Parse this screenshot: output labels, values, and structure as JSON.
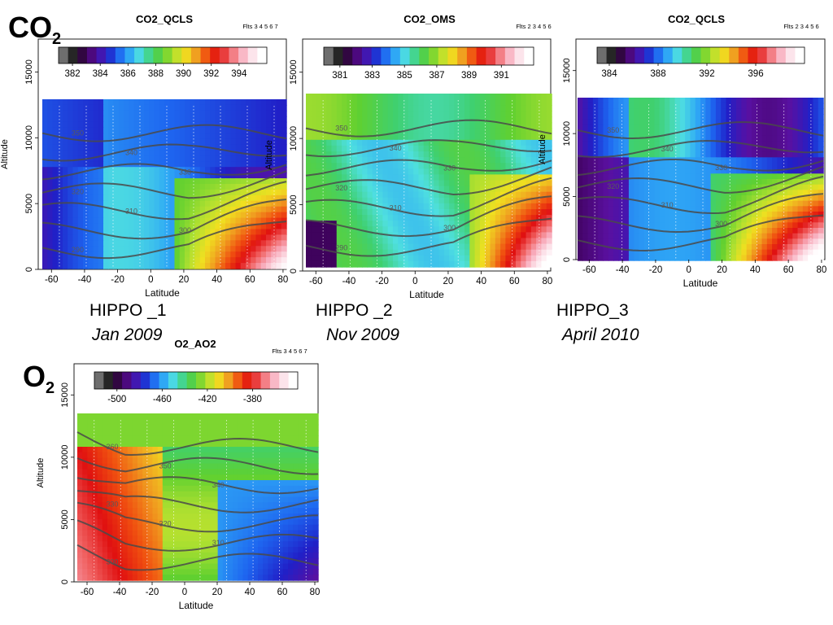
{
  "gas_labels": {
    "co2": {
      "main": "CO",
      "sub": "2"
    },
    "o2": {
      "main": "O",
      "sub": "2"
    }
  },
  "captions": [
    {
      "campaign": "HIPPO _1",
      "date": "Jan 2009"
    },
    {
      "campaign": "HIPPO _2",
      "date": "Nov 2009"
    },
    {
      "campaign": "HIPPO_3",
      "date": "April 2010"
    }
  ],
  "colorbar_colors": [
    "#6e6e6e",
    "#1a1a1a",
    "#3a0050",
    "#5a10a0",
    "#2020c8",
    "#1e66f0",
    "#2fa8f5",
    "#4fe0e0",
    "#3fd070",
    "#60d030",
    "#b0e030",
    "#f0e020",
    "#f0a020",
    "#f05010",
    "#e01010",
    "#f06060",
    "#f8a8b8",
    "#fce0e8",
    "#ffffff"
  ],
  "chart_data": [
    {
      "type": "heatmap",
      "title": "CO2_QCLS",
      "flights_label": "Flts 3  4  5  6  7",
      "xlabel": "Latitude",
      "ylabel": "Altitude",
      "xlim": [
        -68,
        82
      ],
      "ylim": [
        0,
        17500
      ],
      "x_ticks": [
        "-60",
        "-40",
        "-20",
        "0",
        "20",
        "40",
        "60",
        "80"
      ],
      "y_ticks": [
        "0",
        "5000",
        "10000",
        "15000"
      ],
      "colorbar": {
        "ticks": [
          "382",
          "384",
          "386",
          "388",
          "390",
          "392",
          "394"
        ],
        "range": [
          381,
          396
        ]
      },
      "contour_labels": [
        "350",
        "340",
        "330",
        "320",
        "310",
        "300",
        "290",
        "280",
        "270"
      ]
    },
    {
      "type": "heatmap",
      "title": "CO2_OMS",
      "flights_label": "Flts 2  3  4  5  6",
      "xlabel": "Latitude",
      "ylabel": "Altitude",
      "xlim": [
        -68,
        82
      ],
      "ylim": [
        0,
        17500
      ],
      "x_ticks": [
        "-60",
        "-40",
        "-20",
        "0",
        "20",
        "40",
        "60",
        "80"
      ],
      "y_ticks": [
        "0",
        "5000",
        "10000",
        "15000"
      ],
      "colorbar": {
        "ticks": [
          "381",
          "383",
          "385",
          "387",
          "389",
          "391"
        ],
        "range": [
          380,
          393
        ]
      },
      "contour_labels": [
        "350",
        "340",
        "330",
        "320",
        "310",
        "300",
        "290",
        "280",
        "360"
      ]
    },
    {
      "type": "heatmap",
      "title": "CO2_QCLS",
      "flights_label": "Flts 2  3  4  5  6",
      "xlabel": "Latitude",
      "ylabel": "Altitude",
      "xlim": [
        -68,
        82
      ],
      "ylim": [
        0,
        17500
      ],
      "x_ticks": [
        "-60",
        "-40",
        "-20",
        "0",
        "20",
        "40",
        "60",
        "80"
      ],
      "y_ticks": [
        "0",
        "5000",
        "10000",
        "15000"
      ],
      "colorbar": {
        "ticks": [
          "384",
          "388",
          "392",
          "396"
        ],
        "range": [
          383,
          400
        ]
      },
      "contour_labels": [
        "350",
        "340",
        "330",
        "320",
        "310",
        "300"
      ]
    },
    {
      "type": "heatmap",
      "title": "O2_AO2",
      "flights_label": "Flts 3  4  5  6  7",
      "xlabel": "Latitude",
      "ylabel": "Altitude",
      "xlim": [
        -68,
        82
      ],
      "ylim": [
        0,
        17500
      ],
      "x_ticks": [
        "-60",
        "-40",
        "-20",
        "0",
        "20",
        "40",
        "60",
        "80"
      ],
      "y_ticks": [
        "0",
        "5000",
        "10000",
        "15000"
      ],
      "colorbar": {
        "ticks": [
          "-500",
          "-460",
          "-420",
          "-380"
        ],
        "range": [
          -520,
          -340
        ]
      },
      "contour_labels": [
        "360",
        "350",
        "340",
        "330",
        "320",
        "310",
        "300",
        "290",
        "270"
      ]
    }
  ]
}
